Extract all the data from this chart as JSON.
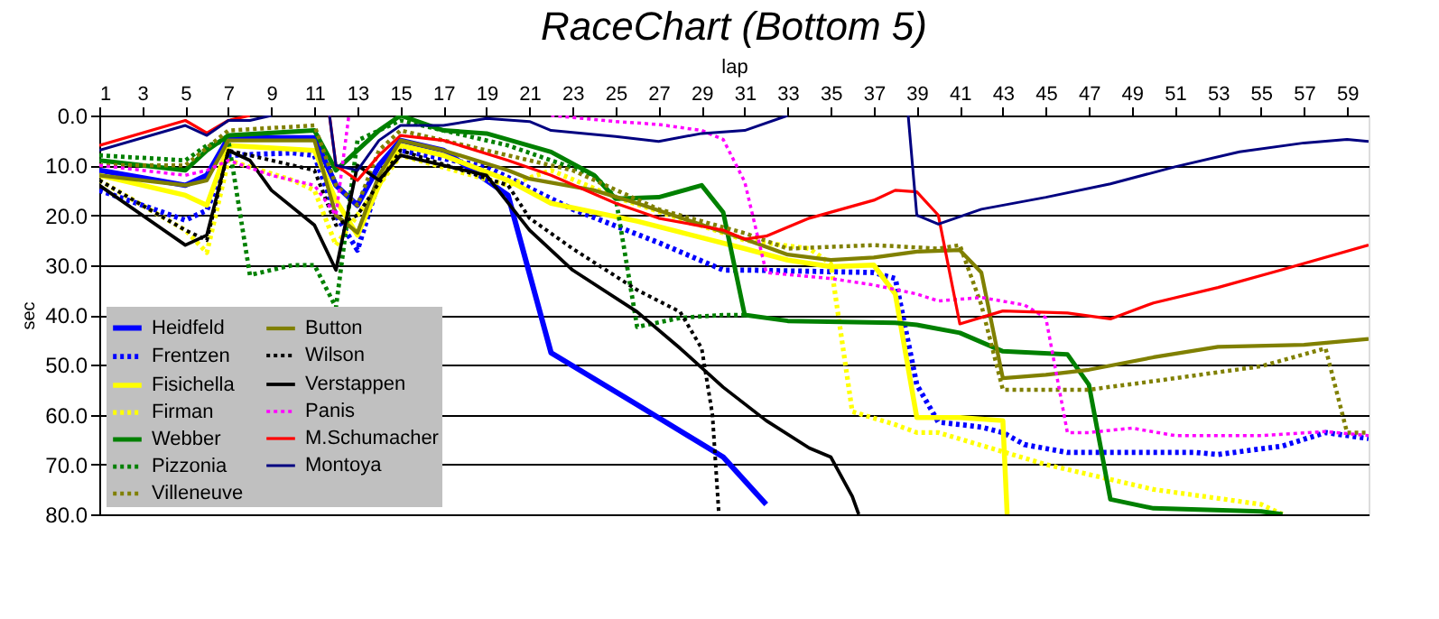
{
  "chart_data": {
    "type": "line",
    "title": "RaceChart (Bottom 5)",
    "xlabel": "lap",
    "ylabel": "sec",
    "xlim": [
      1,
      60
    ],
    "xticks": [
      1,
      3,
      5,
      7,
      9,
      11,
      13,
      15,
      17,
      19,
      21,
      23,
      25,
      27,
      29,
      31,
      33,
      35,
      37,
      39,
      41,
      43,
      45,
      47,
      49,
      51,
      53,
      55,
      57,
      59
    ],
    "ylim": [
      80,
      0
    ],
    "yticks": [
      {
        "value": 0,
        "label": "0.0"
      },
      {
        "value": 10,
        "label": "10.0"
      },
      {
        "value": 20,
        "label": "20.0"
      },
      {
        "value": 30,
        "label": "30.0"
      },
      {
        "value": 40,
        "label": "40.0"
      },
      {
        "value": 50,
        "label": "50.0"
      },
      {
        "value": 60,
        "label": "60.0"
      },
      {
        "value": 70,
        "label": "70.0"
      },
      {
        "value": 80,
        "label": "80.0"
      }
    ],
    "grid": "y",
    "legend": "bottom left",
    "marker": "none",
    "series": [
      {
        "name": "Heidfeld",
        "color": "#0000ff",
        "line_style": "solid",
        "x": [
          1,
          5,
          6,
          7,
          11,
          12,
          13,
          14,
          15,
          17,
          20,
          22,
          26,
          30,
          32
        ],
        "values": [
          11,
          14,
          12,
          4.5,
          4.5,
          14,
          18,
          10,
          5,
          7,
          16,
          47.6,
          58,
          68.5,
          78
        ]
      },
      {
        "name": "Frentzen",
        "color": "#0000ff",
        "line_style": "dotted",
        "x": [
          1,
          5,
          6,
          7,
          10,
          11,
          12,
          13,
          14,
          15,
          19,
          23,
          27,
          30,
          31,
          37,
          38,
          39,
          40,
          42,
          43,
          44,
          46,
          52,
          53,
          56,
          58,
          60
        ],
        "values": [
          15,
          21,
          19,
          8,
          7.5,
          8,
          20,
          27,
          13,
          7,
          10.3,
          18.8,
          25.5,
          31,
          31,
          31.5,
          32.7,
          54,
          61.5,
          62.5,
          63.6,
          66,
          67.6,
          67.6,
          68,
          66.3,
          63.6,
          64.8
        ]
      },
      {
        "name": "Fisichella",
        "color": "#ffff00",
        "line_style": "solid",
        "x": [
          1,
          5,
          6,
          7,
          11,
          12,
          13,
          14,
          15,
          17,
          20,
          22,
          26,
          31,
          33,
          35,
          37,
          38,
          39,
          41,
          43,
          43.2
        ],
        "values": [
          12,
          16,
          18,
          6,
          7,
          17,
          24,
          14,
          6,
          8,
          13,
          17.6,
          21.2,
          26.7,
          29,
          30.3,
          30,
          35.8,
          60.6,
          60.6,
          61.2,
          80
        ]
      },
      {
        "name": "Firman",
        "color": "#ffff00",
        "line_style": "dotted",
        "x": [
          1,
          5,
          6,
          7,
          10,
          11,
          12,
          13,
          15,
          20,
          22,
          25,
          31,
          34,
          35,
          36,
          38,
          39,
          40,
          45,
          50,
          55,
          56
        ],
        "values": [
          13,
          23,
          27.5,
          9,
          13,
          15,
          26,
          20,
          8,
          14,
          11,
          16.4,
          25,
          26.7,
          29.7,
          59.4,
          62,
          63.6,
          63.6,
          70,
          75,
          78,
          80
        ]
      },
      {
        "name": "Webber",
        "color": "#008000",
        "line_style": "solid",
        "x": [
          1,
          5,
          6,
          7,
          11,
          12,
          13,
          14,
          15,
          17,
          19,
          22,
          24,
          25,
          27,
          29,
          30,
          31,
          33,
          38,
          39,
          41,
          43,
          46,
          47,
          48,
          50,
          55,
          56
        ],
        "values": [
          9,
          11,
          7,
          4,
          3,
          11,
          7,
          3,
          0,
          3,
          3.6,
          7.3,
          12,
          16.7,
          16.4,
          14,
          19.4,
          40,
          41.2,
          41.6,
          42,
          43.6,
          47.3,
          47.9,
          54,
          77,
          78.8,
          79.4,
          80
        ]
      },
      {
        "name": "Pizzonia",
        "color": "#008000",
        "line_style": "dotted",
        "x": [
          1,
          5,
          6,
          7,
          8,
          10,
          11,
          12,
          13,
          15,
          20,
          24,
          25,
          26,
          28,
          30,
          31
        ],
        "values": [
          8,
          9,
          6,
          5,
          32,
          30,
          30,
          38.5,
          5,
          1,
          6,
          12,
          16.4,
          42.4,
          40.6,
          40,
          40
        ]
      },
      {
        "name": "Villeneuve",
        "color": "#808000",
        "line_style": "dotted",
        "x": [
          1,
          5,
          7,
          11,
          12,
          13,
          14,
          15,
          20,
          23,
          27,
          31,
          33,
          37,
          40,
          41,
          42,
          43,
          47,
          50,
          55,
          58,
          59,
          60
        ],
        "values": [
          10,
          10,
          3,
          2,
          14,
          18,
          7,
          3,
          8,
          11,
          18.8,
          23.6,
          26.7,
          26,
          26.7,
          26,
          38,
          55,
          55,
          53.3,
          50.3,
          46.7,
          63.6,
          63.6
        ]
      },
      {
        "name": "Button",
        "color": "#808000",
        "line_style": "solid",
        "x": [
          1,
          5,
          6,
          7,
          11,
          12,
          13,
          14,
          15,
          17,
          20,
          21,
          24,
          26,
          31,
          33,
          35,
          37,
          39,
          41,
          42,
          43,
          45,
          47,
          50,
          53,
          57,
          60
        ],
        "values": [
          12,
          14,
          13,
          5,
          5,
          20,
          23.5,
          12,
          5,
          7,
          11,
          12.7,
          15,
          17.6,
          24.8,
          27.9,
          29,
          28.5,
          27.3,
          27,
          31.5,
          52.7,
          52,
          51,
          48.5,
          46.4,
          46,
          44.8
        ]
      },
      {
        "name": "Wilson",
        "color": "#000000",
        "line_style": "dotted",
        "x": [
          1,
          5,
          6,
          7,
          10,
          11,
          12,
          13,
          15,
          20,
          21,
          23,
          26,
          28,
          29,
          29.5,
          29.8
        ],
        "values": [
          13,
          23,
          25,
          7,
          10,
          11,
          22,
          20,
          7,
          14,
          20.6,
          26.7,
          35,
          39.4,
          46.7,
          60,
          80
        ]
      },
      {
        "name": "Verstappen",
        "color": "#000000",
        "line_style": "solid",
        "x": [
          1,
          5,
          6,
          7,
          8,
          9,
          11,
          12,
          13,
          14,
          15,
          19,
          21,
          23,
          26,
          28,
          30,
          32,
          34,
          35,
          36,
          36.3
        ],
        "values": [
          14,
          26,
          24,
          7,
          9,
          15,
          22,
          31,
          10,
          13,
          8,
          12,
          23,
          31,
          39.4,
          46.7,
          54.5,
          61.2,
          66.7,
          68.5,
          76.4,
          80
        ]
      },
      {
        "name": "Panis",
        "color": "#ff00ff",
        "line_style": "dotted",
        "x": [
          1,
          5,
          6,
          7,
          9,
          11,
          12,
          12.6,
          13,
          22,
          25,
          27,
          29,
          30,
          31,
          32,
          35,
          37,
          39,
          40,
          42,
          44,
          45,
          46,
          47,
          49,
          51,
          55,
          58,
          60
        ],
        "values": [
          10,
          12,
          11,
          9,
          12,
          14,
          20,
          0,
          null,
          0,
          1.2,
          1.8,
          3,
          4.8,
          13.3,
          31.5,
          32.7,
          34,
          35.8,
          37.2,
          36.5,
          38,
          40.6,
          63.6,
          63.6,
          62.7,
          64.2,
          64.2,
          63.4,
          64.2
        ]
      },
      {
        "name": "M.Schumacher",
        "color": "#ff0000",
        "line_style": "solid",
        "x": [
          1,
          5,
          6,
          7,
          8,
          9,
          11.7,
          12,
          13,
          14,
          15,
          17,
          20,
          22,
          25,
          27,
          30,
          31,
          32,
          34,
          37,
          38,
          39,
          40,
          41,
          43,
          46,
          48,
          50,
          53,
          56,
          60
        ],
        "values": [
          6,
          1,
          3.5,
          1,
          0,
          null,
          0,
          10,
          13,
          8,
          4,
          5,
          9,
          12,
          17.6,
          20.6,
          23,
          24.8,
          24.2,
          20.6,
          17,
          15,
          15.3,
          20,
          41.8,
          39.2,
          39.6,
          40.8,
          37.6,
          34.5,
          30.9,
          26
        ]
      },
      {
        "name": "Montoya",
        "color": "#000080",
        "line_style": "solid",
        "x": [
          1,
          5,
          6,
          7,
          8,
          9,
          10,
          11.7,
          12,
          13,
          14,
          15,
          17,
          19,
          21,
          22,
          25,
          27,
          29,
          31,
          33,
          34,
          38.6,
          39,
          40,
          42,
          45,
          48,
          51,
          54,
          57,
          59,
          60
        ],
        "values": [
          7,
          2,
          4,
          1,
          1,
          0,
          null,
          0,
          10,
          11,
          5,
          2,
          2,
          0.6,
          1.2,
          3,
          4.2,
          5.2,
          3.6,
          3,
          0,
          null,
          0,
          20,
          21.8,
          18.8,
          16.4,
          13.7,
          10.3,
          7.3,
          5.5,
          4.8,
          5.2
        ]
      }
    ]
  }
}
